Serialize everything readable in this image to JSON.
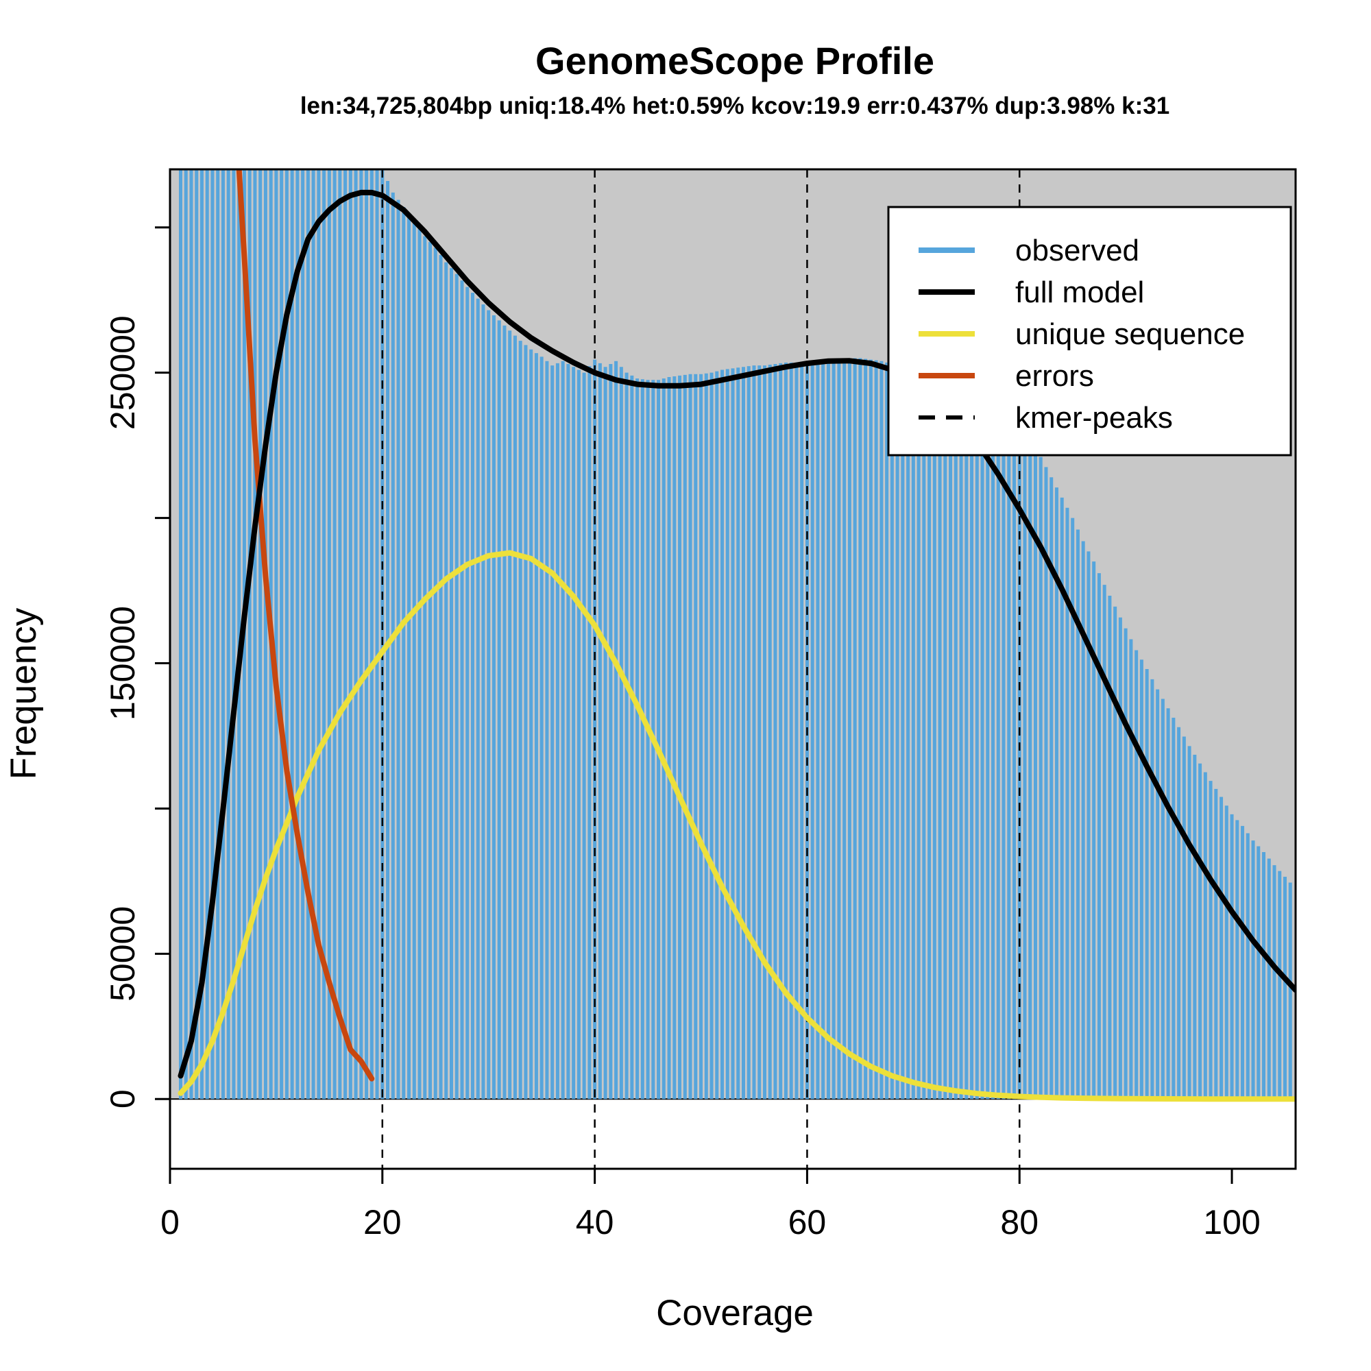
{
  "colors": {
    "panel_bg": "#c8c8c8",
    "observed": "#56a5dc",
    "full_model": "#000000",
    "unique_sequence": "#ede03a",
    "errors": "#c8470f",
    "kmer_peaks": "#000000"
  },
  "chart_data": {
    "type": "line",
    "title": "GenomeScope Profile",
    "subtitle": "len:34,725,804bp uniq:18.4%  het:0.59% kcov:19.9 err:0.437%  dup:3.98%  k:31",
    "xlabel": "Coverage",
    "ylabel": "Frequency",
    "xlim": [
      0,
      106
    ],
    "ylim": [
      -24000,
      320000
    ],
    "x_ticks": [
      0,
      20,
      40,
      60,
      80,
      100
    ],
    "x_tick_labels": [
      "0",
      "20",
      "40",
      "60",
      "80",
      "100"
    ],
    "y_ticks": [
      0,
      50000,
      100000,
      150000,
      200000,
      250000,
      300000
    ],
    "y_tick_labels": [
      "0",
      "50000",
      "",
      "150000",
      "",
      "250000",
      ""
    ],
    "grid": false,
    "legend_position": "top-right",
    "kmer_peaks": [
      20,
      40,
      60,
      80
    ],
    "legend": [
      {
        "label": "observed",
        "style": "solid",
        "color_key": "observed"
      },
      {
        "label": "full model",
        "style": "solid",
        "color_key": "full_model"
      },
      {
        "label": "unique sequence",
        "style": "solid",
        "color_key": "unique_sequence"
      },
      {
        "label": "errors",
        "style": "solid",
        "color_key": "errors"
      },
      {
        "label": "kmer-peaks",
        "style": "dashed",
        "color_key": "kmer_peaks"
      }
    ],
    "observed": {
      "name": "observed",
      "x": [
        1,
        2,
        3,
        4,
        5,
        6,
        7,
        8,
        9,
        10,
        11,
        12,
        13,
        14,
        15,
        16,
        17,
        18,
        19,
        20,
        21,
        22,
        23,
        24,
        25,
        26,
        27,
        28,
        29,
        30,
        31,
        32,
        33,
        34,
        35,
        36,
        37,
        38,
        39,
        40,
        41,
        42,
        43,
        44,
        45,
        46,
        47,
        48,
        49,
        50,
        51,
        52,
        53,
        54,
        55,
        56,
        57,
        58,
        59,
        60,
        61,
        62,
        63,
        64,
        65,
        66,
        67,
        68,
        69,
        70,
        71,
        72,
        73,
        74,
        75,
        76,
        77,
        78,
        79,
        80,
        81,
        82,
        83,
        84,
        85,
        86,
        87,
        88,
        89,
        90,
        91,
        92,
        93,
        94,
        95,
        96,
        97,
        98,
        99,
        100,
        101,
        102,
        103,
        104,
        105,
        106
      ],
      "values": [
        320000,
        320000,
        320000,
        320000,
        320000,
        320000,
        320000,
        320000,
        320000,
        320000,
        320000,
        320000,
        320000,
        320000,
        320000,
        320000,
        320000,
        320000,
        320000,
        320000,
        312000,
        307000,
        302000,
        297000,
        293000,
        288000,
        284000,
        279500,
        275500,
        271500,
        268000,
        264500,
        261000,
        258000,
        255500,
        252500,
        254000,
        252000,
        250000,
        254500,
        252000,
        254000,
        250000,
        248000,
        247500,
        247500,
        248500,
        249000,
        249500,
        249500,
        250000,
        251000,
        251500,
        252000,
        252500,
        252500,
        253000,
        253500,
        253500,
        254000,
        254500,
        254500,
        255000,
        255000,
        255000,
        254500,
        254000,
        253000,
        250000,
        248000,
        240000,
        240000,
        240000,
        240000,
        240000,
        240000,
        240000,
        240000,
        238000,
        233000,
        227000,
        221000,
        214000,
        207000,
        200000,
        192000,
        185000,
        177000,
        169500,
        162000,
        154500,
        148000,
        141000,
        134500,
        128000,
        121500,
        115500,
        109500,
        104000,
        98000,
        94000,
        89000,
        85000,
        80500,
        76500,
        72500
      ]
    },
    "full_model": {
      "name": "full model",
      "x": [
        1,
        2,
        3,
        4,
        5,
        6,
        7,
        8,
        9,
        10,
        11,
        12,
        13,
        14,
        15,
        16,
        17,
        18,
        19,
        20,
        22,
        24,
        26,
        28,
        30,
        32,
        34,
        36,
        38,
        40,
        42,
        44,
        46,
        48,
        50,
        52,
        54,
        56,
        58,
        60,
        62,
        64,
        66,
        68,
        70,
        72,
        74,
        76,
        78,
        80,
        82,
        84,
        86,
        88,
        90,
        92,
        94,
        96,
        98,
        100,
        102,
        104,
        106
      ],
      "values": [
        8000,
        20000,
        40000,
        68000,
        100000,
        133000,
        166000,
        197000,
        225000,
        250000,
        270000,
        285000,
        296000,
        302000,
        306000,
        309000,
        311000,
        312000,
        312000,
        311000,
        306000,
        298500,
        290000,
        281500,
        274000,
        267500,
        262000,
        257500,
        253500,
        250000,
        247500,
        246000,
        245500,
        245500,
        246000,
        247500,
        249000,
        250500,
        252000,
        253200,
        254000,
        254100,
        253200,
        251000,
        247500,
        242000,
        235000,
        226000,
        215000,
        203000,
        190000,
        175500,
        160000,
        144500,
        129000,
        114500,
        100500,
        87500,
        75500,
        64500,
        54500,
        45500,
        37500
      ]
    },
    "unique_sequence": {
      "name": "unique sequence",
      "x": [
        1,
        2,
        3,
        4,
        5,
        6,
        7,
        8,
        9,
        10,
        12,
        14,
        16,
        18,
        20,
        22,
        24,
        26,
        28,
        30,
        32,
        34,
        36,
        38,
        40,
        42,
        44,
        46,
        48,
        50,
        52,
        54,
        56,
        58,
        60,
        62,
        64,
        66,
        68,
        70,
        72,
        74,
        76,
        78,
        80,
        82,
        84,
        86,
        88,
        90,
        92,
        94,
        96,
        98,
        100,
        102,
        104,
        106
      ],
      "values": [
        2000,
        6000,
        12000,
        20000,
        30000,
        41000,
        53000,
        65000,
        76000,
        86000,
        104000,
        120000,
        133000,
        144000,
        154000,
        164000,
        172000,
        179000,
        184000,
        187000,
        188000,
        186000,
        181000,
        173000,
        163000,
        150000,
        135500,
        120000,
        104000,
        88000,
        73000,
        59500,
        47000,
        36500,
        28000,
        21000,
        15500,
        11200,
        8000,
        5700,
        4000,
        2800,
        1900,
        1300,
        900,
        600,
        400,
        280,
        190,
        130,
        90,
        60,
        40,
        28,
        20,
        14,
        10,
        7
      ]
    },
    "errors": {
      "name": "errors",
      "x": [
        6.5,
        7,
        8,
        9,
        10,
        11,
        12,
        13,
        14,
        15,
        16,
        17,
        18,
        19
      ],
      "values": [
        320000,
        290000,
        227000,
        180000,
        142000,
        113000,
        91000,
        71000,
        53000,
        40000,
        28000,
        17000,
        13000,
        7000
      ]
    }
  }
}
